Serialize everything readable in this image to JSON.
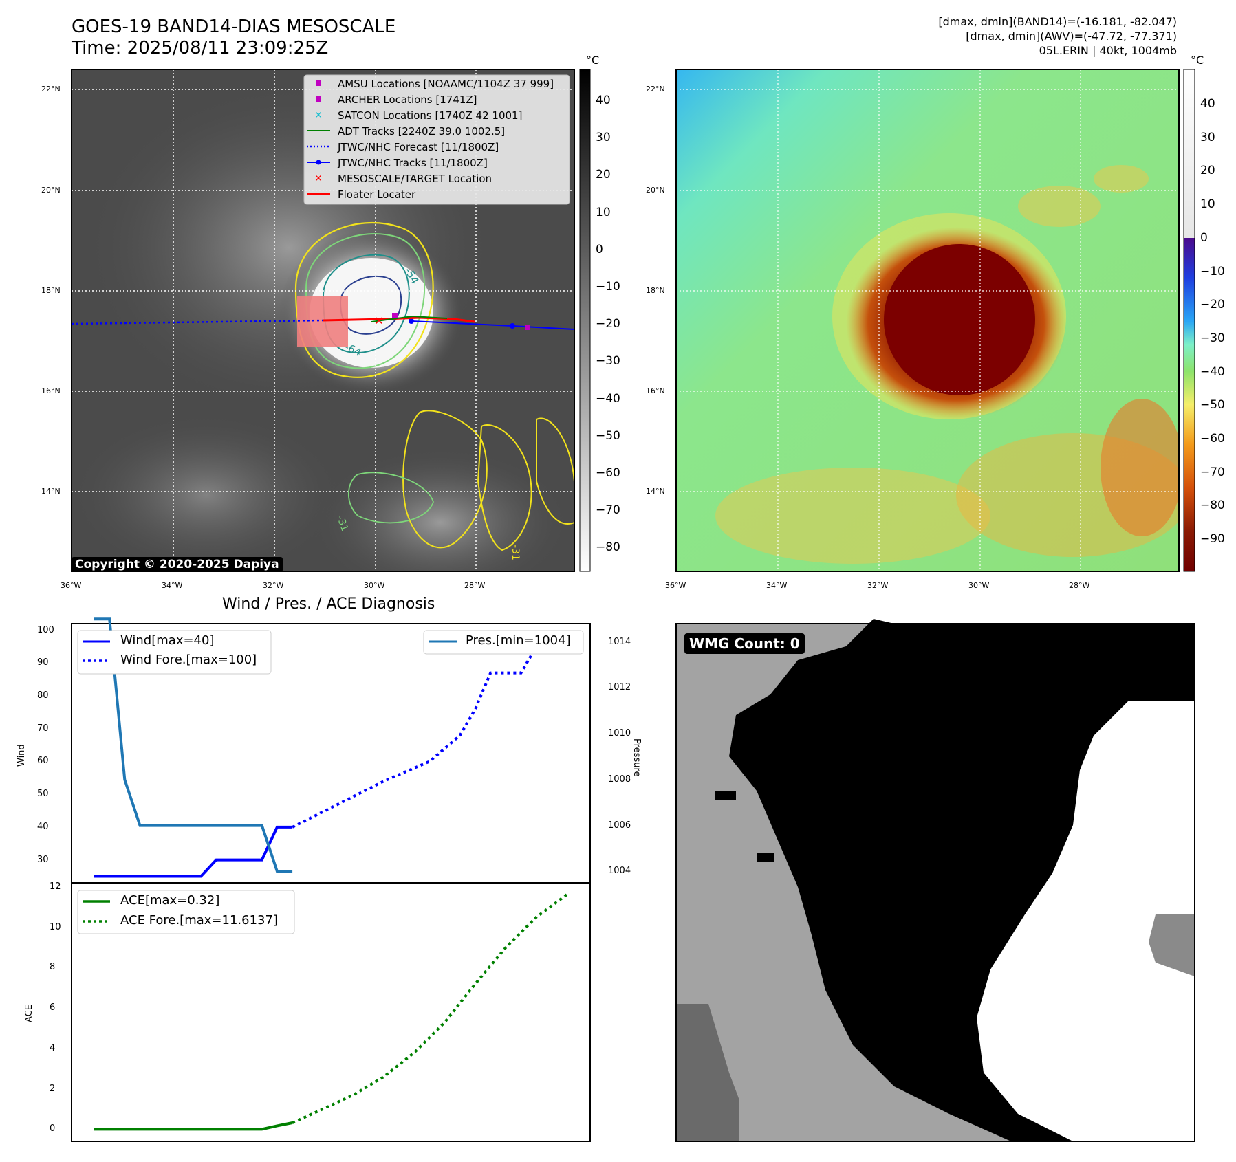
{
  "header": {
    "title_line1": "GOES-19 BAND14-DIAS MESOSCALE",
    "title_line2": "Time: 2025/08/11 23:09:25Z",
    "info_line1": "[dmax, dmin](BAND14)=(-16.181, -82.047)",
    "info_line2": "[dmax, dmin](AWV)=(-47.72, -77.371)",
    "info_line3": "05L.ERIN | 40kt, 1004mb"
  },
  "ir_panel": {
    "colorbar_unit": "°C",
    "colorbar_ticks": [
      "40",
      "30",
      "20",
      "10",
      "0",
      "−10",
      "−20",
      "−30",
      "−40",
      "−50",
      "−60",
      "−70",
      "−80"
    ],
    "lat_labels": [
      "22°N",
      "20°N",
      "18°N",
      "16°N",
      "14°N"
    ],
    "lon_labels": [
      "36°W",
      "34°W",
      "32°W",
      "30°W",
      "28°W"
    ],
    "contour_labels": [
      "-54",
      "-64",
      "-31",
      "-31"
    ],
    "copyright": "Copyright © 2020-2025 Dapiya",
    "legend": [
      {
        "label": "AMSU Locations [NOAAMC/1104Z 37 999]",
        "marker": "square",
        "color": "#c000c0"
      },
      {
        "label": "ARCHER Locations [1741Z]",
        "marker": "square",
        "color": "#c000c0"
      },
      {
        "label": "SATCON Locations [1740Z 42 1001]",
        "marker": "x",
        "color": "#17becf"
      },
      {
        "label": "ADT Tracks [2240Z 39.0 1002.5]",
        "marker": "line",
        "color": "#008000"
      },
      {
        "label": "JTWC/NHC Forecast [11/1800Z]",
        "marker": "dotted",
        "color": "#0000ff"
      },
      {
        "label": "JTWC/NHC Tracks [11/1800Z]",
        "marker": "line-dot",
        "color": "#0000ff"
      },
      {
        "label": "MESOSCALE/TARGET Location",
        "marker": "x",
        "color": "#ff0000"
      },
      {
        "label": "Floater Locater",
        "marker": "line",
        "color": "#ff0000"
      }
    ]
  },
  "wv_panel": {
    "colorbar_unit": "°C",
    "colorbar_ticks": [
      "40",
      "30",
      "20",
      "10",
      "0",
      "−10",
      "−20",
      "−30",
      "−40",
      "−50",
      "−60",
      "−70",
      "−80",
      "−90"
    ],
    "lat_labels": [
      "22°N",
      "20°N",
      "18°N",
      "16°N",
      "14°N"
    ],
    "lon_labels": [
      "36°W",
      "34°W",
      "32°W",
      "30°W",
      "28°W"
    ]
  },
  "diag_panel": {
    "title": "Wind / Pres. / ACE Diagnosis",
    "wind_ylabel": "Wind",
    "pres_ylabel": "Pressure",
    "ace_ylabel": "ACE",
    "legend_wind": "Wind[max=40]",
    "legend_wind_fore": "Wind Fore.[max=100]",
    "legend_pres": "Pres.[min=1004]",
    "legend_ace": "ACE[max=0.32]",
    "legend_ace_fore": "ACE Fore.[max=11.6137]",
    "wind_ticks": [
      "100",
      "90",
      "80",
      "70",
      "60",
      "50",
      "40",
      "30"
    ],
    "pres_ticks": [
      "1014",
      "1012",
      "1010",
      "1008",
      "1006",
      "1004"
    ],
    "ace_ticks": [
      "12",
      "10",
      "8",
      "6",
      "4",
      "2",
      "0"
    ]
  },
  "wmg_panel": {
    "label": "WMG Count: 0"
  },
  "chart_data": [
    {
      "type": "line",
      "title": "Wind / Pres. / ACE Diagnosis",
      "ylabel": "Wind",
      "ylim": [
        23,
        102
      ],
      "series": [
        {
          "name": "Wind[max=40]",
          "style": "solid",
          "color": "#0000ff",
          "x": [
            0,
            1,
            2,
            3,
            4,
            5,
            6,
            7,
            8,
            9,
            10,
            11,
            12,
            13
          ],
          "values": [
            25,
            25,
            25,
            25,
            25,
            25,
            25,
            25,
            30,
            30,
            30,
            30,
            40,
            40
          ]
        },
        {
          "name": "Wind Fore.[max=100]",
          "style": "dotted",
          "color": "#0000ff",
          "x": [
            13,
            16,
            19,
            22,
            24,
            25,
            26,
            27,
            28,
            29,
            30
          ],
          "values": [
            40,
            47,
            54,
            60,
            68,
            76,
            87,
            87,
            87,
            95,
            100
          ]
        }
      ]
    },
    {
      "type": "line",
      "ylabel": "Pressure",
      "ylim": [
        1003.5,
        1014.8
      ],
      "series": [
        {
          "name": "Pres.[min=1004]",
          "style": "solid",
          "color": "#1f77b4",
          "x": [
            0,
            1,
            2,
            3,
            4,
            5,
            6,
            7,
            8,
            9,
            10,
            11,
            12,
            13
          ],
          "values": [
            1015,
            1015,
            1008,
            1006,
            1006,
            1006,
            1006,
            1006,
            1006,
            1006,
            1006,
            1006,
            1004,
            1004
          ]
        }
      ]
    },
    {
      "type": "line",
      "ylabel": "ACE",
      "ylim": [
        -0.6,
        12.2
      ],
      "series": [
        {
          "name": "ACE[max=0.32]",
          "style": "solid",
          "color": "#008000",
          "x": [
            0,
            1,
            2,
            3,
            4,
            5,
            6,
            7,
            8,
            9,
            10,
            11,
            12,
            13
          ],
          "values": [
            0,
            0,
            0,
            0,
            0,
            0,
            0,
            0,
            0,
            0,
            0,
            0,
            0.17,
            0.32
          ]
        },
        {
          "name": "ACE Fore.[max=11.6137]",
          "style": "dotted",
          "color": "#008000",
          "x": [
            13,
            15,
            17,
            19,
            21,
            23,
            25,
            27,
            29,
            31
          ],
          "values": [
            0.32,
            1.0,
            1.7,
            2.6,
            3.8,
            5.3,
            7.2,
            9.0,
            10.5,
            11.6137
          ]
        }
      ]
    }
  ]
}
